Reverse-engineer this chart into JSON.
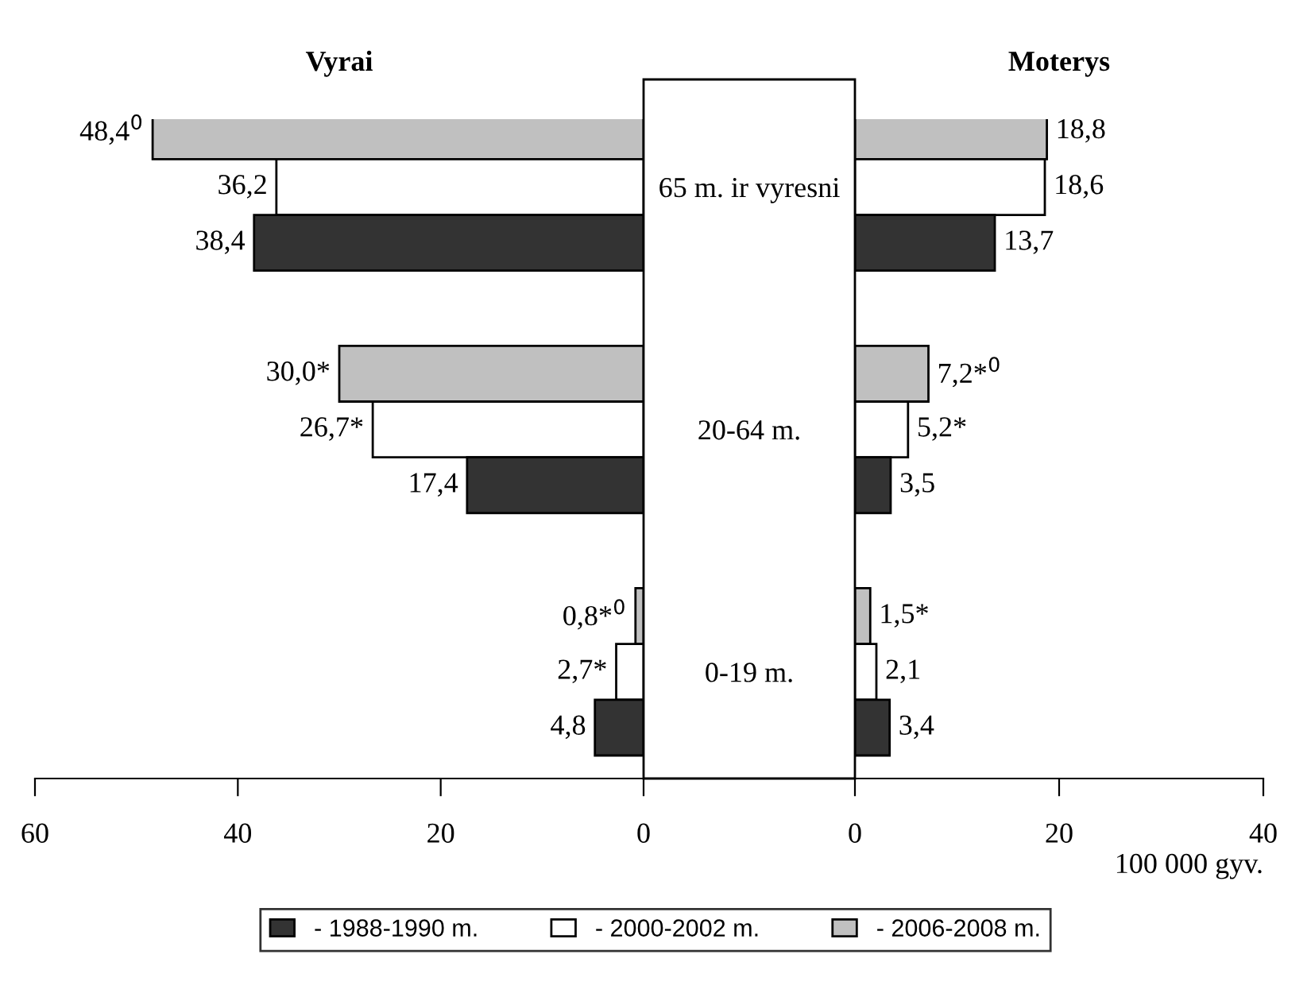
{
  "chart_data": [
    {
      "type": "bar",
      "orientation": "horizontal",
      "title": "Vyrai",
      "categories": [
        "65 m. ir vyresni",
        "20-64 m.",
        "0-19 m."
      ],
      "xlim": [
        60,
        0
      ],
      "xticks": [
        60,
        40,
        20,
        0
      ],
      "grid": false,
      "series": [
        {
          "color": "#c0c0c0",
          "values": [
            48.4,
            30.0,
            0.8
          ],
          "value_labels": [
            "48,4$^{0}$",
            "30,0*",
            "0,8*$^{0}$"
          ]
        },
        {
          "color": "#ffffff",
          "values": [
            36.2,
            26.7,
            2.7
          ],
          "value_labels": [
            "36,2",
            "26,7*",
            "2,7*"
          ]
        },
        {
          "color": "#333333",
          "values": [
            38.4,
            17.4,
            4.8
          ],
          "value_labels": [
            "38,4",
            "17,4",
            "4,8"
          ]
        }
      ]
    },
    {
      "type": "bar",
      "orientation": "horizontal",
      "title": "Moterys",
      "xlabel": "100 000 gyv.",
      "categories": [
        null,
        null,
        null
      ],
      "xlim": [
        0,
        40
      ],
      "xticks": [
        0,
        20,
        40
      ],
      "legend": "bottom",
      "grid": false,
      "series": [
        {
          "name": "- 2006-2008 m.",
          "color": "#c0c0c0",
          "values": [
            18.8,
            7.2,
            1.5
          ],
          "value_labels": [
            "18,8",
            "7,2*$^{0}$",
            "1,5*"
          ]
        },
        {
          "name": "- 2000-2002 m.",
          "color": "#ffffff",
          "values": [
            18.6,
            5.2,
            2.1
          ],
          "value_labels": [
            "18,6",
            "5,2*",
            "2,1"
          ]
        },
        {
          "name": "- 1988-1990 m.",
          "color": "#333333",
          "values": [
            13.7,
            3.5,
            3.4
          ],
          "value_labels": [
            "13,7",
            "3,5",
            "3,4"
          ]
        }
      ]
    }
  ]
}
